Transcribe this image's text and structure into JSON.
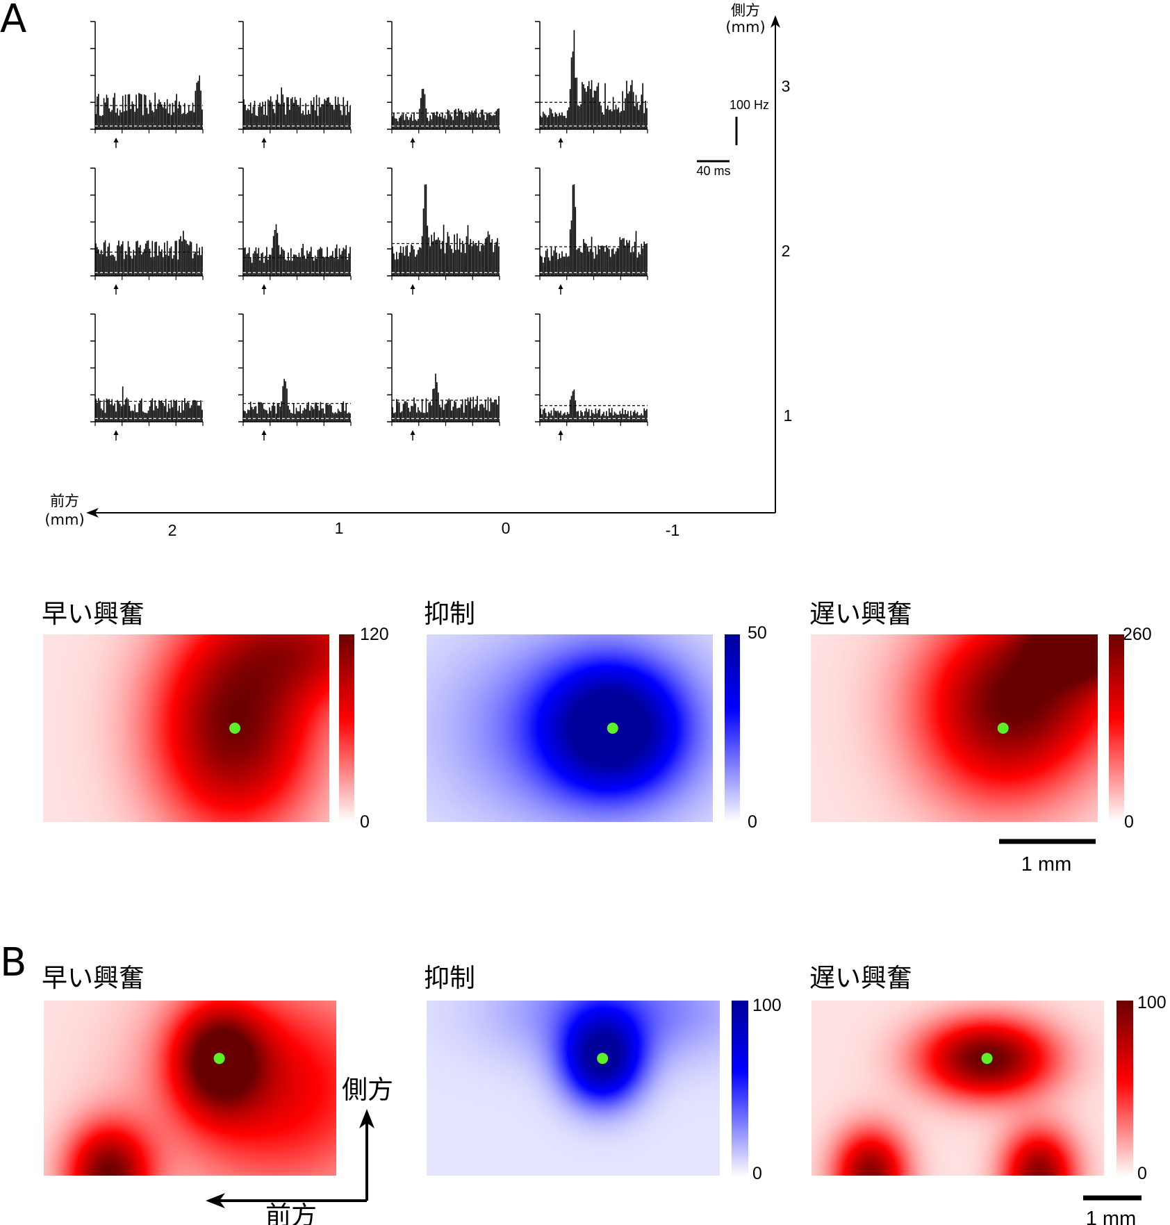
{
  "chart_data": [
    {
      "type": "bar",
      "panel": "A",
      "description_kind": "grid of peri-stimulus time histograms",
      "x_axis": {
        "label_line1": "前方",
        "label_line2": "(mm)",
        "ticks": [
          "2",
          "1",
          "0",
          "-1"
        ]
      },
      "y_axis": {
        "label_line1": "側方",
        "label_line2": "(mm)",
        "ticks": [
          "3",
          "2",
          "1"
        ]
      },
      "scalebars": {
        "rate": "100 Hz",
        "time": "40 ms"
      },
      "grid": [
        {
          "lateral": "3",
          "cells": [
            {
              "anterior": "2",
              "base": 0.12,
              "spread": 0.22,
              "peak": 0.5,
              "peak_pos": 0.95,
              "sustain": 0.0,
              "spike": 0.5,
              "upper": 0.22,
              "lower": 0.03
            },
            {
              "anterior": "1",
              "base": 0.12,
              "spread": 0.2,
              "peak": 0.3,
              "peak_pos": 0.35,
              "sustain": 0.0,
              "spike": 0.0,
              "upper": 0.22,
              "lower": 0.03
            },
            {
              "anterior": "0",
              "base": 0.07,
              "spread": 0.1,
              "peak": 0.42,
              "peak_pos": 0.28,
              "sustain": 0.05,
              "spike": 0.0,
              "upper": 0.15,
              "lower": 0.03
            },
            {
              "anterior": "-1",
              "base": 0.1,
              "spread": 0.1,
              "peak": 0.9,
              "peak_pos": 0.3,
              "sustain": 0.3,
              "spike": 0.92,
              "upper": 0.25,
              "lower": 0.03
            }
          ]
        },
        {
          "lateral": "2",
          "cells": [
            {
              "anterior": "2",
              "base": 0.14,
              "spread": 0.2,
              "peak": 0.3,
              "peak_pos": 0.8,
              "sustain": 0.0,
              "spike": 0.0,
              "upper": 0.22,
              "lower": 0.03
            },
            {
              "anterior": "1",
              "base": 0.12,
              "spread": 0.15,
              "peak": 0.5,
              "peak_pos": 0.3,
              "sustain": 0.05,
              "spike": 0.0,
              "upper": 0.17,
              "lower": 0.03
            },
            {
              "anterior": "0",
              "base": 0.15,
              "spread": 0.15,
              "peak": 0.85,
              "peak_pos": 0.3,
              "sustain": 0.2,
              "spike": 0.85,
              "upper": 0.3,
              "lower": 0.03
            },
            {
              "anterior": "-1",
              "base": 0.12,
              "spread": 0.15,
              "peak": 0.85,
              "peak_pos": 0.3,
              "sustain": 0.15,
              "spike": 0.85,
              "upper": 0.27,
              "lower": 0.03
            }
          ]
        },
        {
          "lateral": "1",
          "cells": [
            {
              "anterior": "2",
              "base": 0.08,
              "spread": 0.14,
              "peak": 0.2,
              "peak_pos": 0.25,
              "sustain": 0.0,
              "spike": 0.0,
              "upper": 0.19,
              "lower": 0.03
            },
            {
              "anterior": "1",
              "base": 0.07,
              "spread": 0.12,
              "peak": 0.42,
              "peak_pos": 0.38,
              "sustain": 0.0,
              "spike": 0.0,
              "upper": 0.17,
              "lower": 0.03
            },
            {
              "anterior": "0",
              "base": 0.08,
              "spread": 0.15,
              "peak": 0.42,
              "peak_pos": 0.4,
              "sustain": 0.02,
              "spike": 0.0,
              "upper": 0.2,
              "lower": 0.03
            },
            {
              "anterior": "-1",
              "base": 0.05,
              "spread": 0.08,
              "peak": 0.3,
              "peak_pos": 0.3,
              "sustain": 0.0,
              "spike": 0.3,
              "upper": 0.15,
              "lower": 0.03
            }
          ]
        }
      ]
    },
    {
      "type": "heatmap",
      "panel": "A",
      "title": "早い興奮",
      "color": "red",
      "colorbar": {
        "min": "0",
        "max": "120"
      },
      "peak_location": {
        "row": 0.5,
        "col": 0.67
      },
      "sources": [
        {
          "x": 0.67,
          "y": 0.5,
          "amp": 0.9,
          "sx": 0.28,
          "sy": 0.55
        },
        {
          "x": 0.95,
          "y": 0.05,
          "amp": 0.55,
          "sx": 0.3,
          "sy": 0.3
        }
      ],
      "marker": {
        "x": 0.67,
        "y": 0.5
      }
    },
    {
      "type": "heatmap",
      "panel": "A",
      "title": "抑制",
      "color": "blue",
      "colorbar": {
        "min": "0",
        "max": "50"
      },
      "sources": [
        {
          "x": 0.65,
          "y": 0.5,
          "amp": 0.95,
          "sx": 0.22,
          "sy": 0.32
        },
        {
          "x": 0.55,
          "y": 0.5,
          "amp": 0.35,
          "sx": 0.45,
          "sy": 0.5
        }
      ],
      "marker": {
        "x": 0.65,
        "y": 0.5
      }
    },
    {
      "type": "heatmap",
      "panel": "A",
      "title": "遅い興奮",
      "color": "red",
      "colorbar": {
        "min": "0",
        "max": "260"
      },
      "sources": [
        {
          "x": 0.98,
          "y": 0.0,
          "amp": 1.0,
          "sx": 0.2,
          "sy": 0.22
        },
        {
          "x": 0.67,
          "y": 0.5,
          "amp": 0.6,
          "sx": 0.3,
          "sy": 0.45
        },
        {
          "x": 0.8,
          "y": 0.2,
          "amp": 0.55,
          "sx": 0.35,
          "sy": 0.4
        }
      ],
      "marker": {
        "x": 0.67,
        "y": 0.5
      },
      "scalebar": "1 mm"
    },
    {
      "type": "heatmap",
      "panel": "B",
      "title": "早い興奮",
      "color": "red",
      "sources": [
        {
          "x": 0.6,
          "y": 0.33,
          "amp": 0.85,
          "sx": 0.15,
          "sy": 0.3
        },
        {
          "x": 0.22,
          "y": 1.0,
          "amp": 0.9,
          "sx": 0.14,
          "sy": 0.28
        },
        {
          "x": 0.8,
          "y": 0.5,
          "amp": 0.55,
          "sx": 0.4,
          "sy": 0.6
        }
      ],
      "marker": {
        "x": 0.6,
        "y": 0.33
      },
      "direction_labels": {
        "lateral": "側方",
        "anterior": "前方"
      }
    },
    {
      "type": "heatmap",
      "panel": "B",
      "title": "抑制",
      "color": "blue",
      "colorbar": {
        "min": "0",
        "max": "100"
      },
      "sources": [
        {
          "x": 0.6,
          "y": 0.33,
          "amp": 0.95,
          "sx": 0.13,
          "sy": 0.25
        },
        {
          "x": 0.65,
          "y": 0.05,
          "amp": 0.3,
          "sx": 0.4,
          "sy": 0.3
        }
      ],
      "marker": {
        "x": 0.6,
        "y": 0.33
      }
    },
    {
      "type": "heatmap",
      "panel": "B",
      "title": "遅い興奮",
      "color": "red",
      "colorbar": {
        "min": "0",
        "max": "100"
      },
      "sources": [
        {
          "x": 0.6,
          "y": 0.33,
          "amp": 0.95,
          "sx": 0.22,
          "sy": 0.22
        },
        {
          "x": 0.2,
          "y": 1.0,
          "amp": 0.85,
          "sx": 0.12,
          "sy": 0.25
        },
        {
          "x": 0.78,
          "y": 1.0,
          "amp": 0.85,
          "sx": 0.12,
          "sy": 0.25
        }
      ],
      "marker": {
        "x": 0.6,
        "y": 0.33
      },
      "scalebar": "1 mm"
    }
  ],
  "labels": {
    "panel_a": "A",
    "panel_b": "B"
  },
  "colors": {
    "red_max": "#7a0000",
    "red_mid": "#ff0000",
    "blue_mid": "#0000ff",
    "blue_max": "#00007a",
    "marker": "#5cf028"
  }
}
